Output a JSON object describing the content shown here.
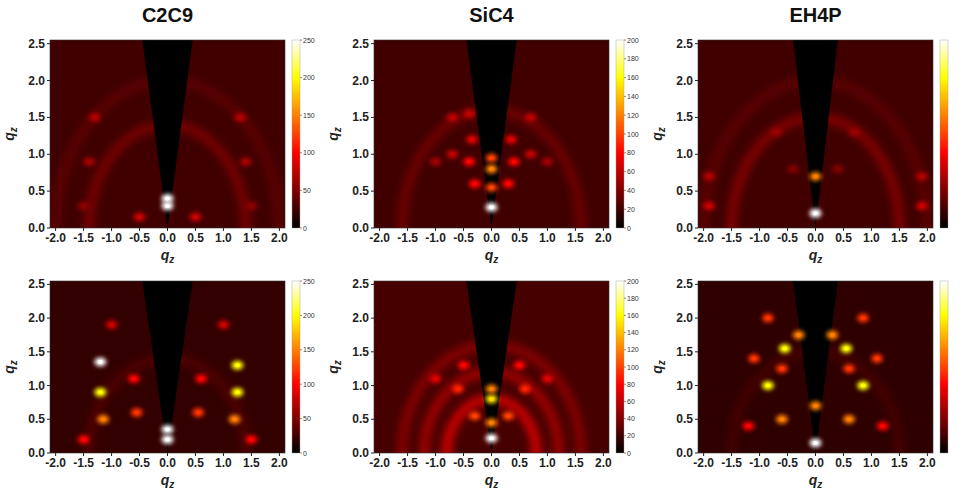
{
  "chart_data": [
    {
      "type": "heatmap",
      "title": "C2C9",
      "xlabel": "qz",
      "ylabel": "qz",
      "xlim": [
        -2.1,
        2.1
      ],
      "ylim": [
        0,
        2.55
      ],
      "xticks": [
        {
          "value": -2,
          "label": "-2.0"
        },
        {
          "value": -1.5,
          "label": "-1.5"
        },
        {
          "value": -1,
          "label": "-1.0"
        },
        {
          "value": -0.5,
          "label": "-0.5"
        },
        {
          "value": 0,
          "label": "0.0"
        },
        {
          "value": 0.5,
          "label": "0.5"
        },
        {
          "value": 1,
          "label": "1.0"
        },
        {
          "value": 1.5,
          "label": "1.5"
        },
        {
          "value": 2,
          "label": "2.0"
        }
      ],
      "yticks": [
        {
          "value": 0,
          "label": "0.0"
        },
        {
          "value": 0.5,
          "label": "0.5"
        },
        {
          "value": 1,
          "label": "1.0"
        },
        {
          "value": 1.5,
          "label": "1.5"
        },
        {
          "value": 2,
          "label": "2.0"
        },
        {
          "value": 2.5,
          "label": "2.5"
        }
      ],
      "background": 25,
      "masked_wedge": 0.45,
      "rings": [
        {
          "q": 1.4,
          "value": 55
        },
        {
          "q": 2.0,
          "value": 40
        }
      ],
      "spots": [
        {
          "x": 0,
          "y": 0.3,
          "value": 250
        },
        {
          "x": 0,
          "y": 0.4,
          "value": 250
        },
        {
          "x": -0.5,
          "y": 0.15,
          "value": 80
        },
        {
          "x": 0.5,
          "y": 0.15,
          "value": 80
        },
        {
          "x": -1.3,
          "y": 1.5,
          "value": 70
        },
        {
          "x": 1.3,
          "y": 1.5,
          "value": 70
        },
        {
          "x": -1.4,
          "y": 0.9,
          "value": 65
        },
        {
          "x": 1.4,
          "y": 0.9,
          "value": 65
        },
        {
          "x": -1.5,
          "y": 0.3,
          "value": 55
        },
        {
          "x": 1.5,
          "y": 0.3,
          "value": 55
        }
      ],
      "colorbar": {
        "range": [
          0,
          250
        ],
        "ticks": [
          0,
          50,
          100,
          150,
          200,
          250
        ]
      }
    },
    {
      "type": "heatmap",
      "title": "SiC4",
      "xlabel": "qz",
      "ylabel": "qz",
      "xlim": [
        -2.1,
        2.1
      ],
      "ylim": [
        0,
        2.55
      ],
      "xticks": [
        {
          "value": -2,
          "label": "-2.0"
        },
        {
          "value": -1.5,
          "label": "-1.5"
        },
        {
          "value": -1,
          "label": "-1.0"
        },
        {
          "value": -0.5,
          "label": "-0.5"
        },
        {
          "value": 0,
          "label": "0.0"
        },
        {
          "value": 0.5,
          "label": "0.5"
        },
        {
          "value": 1,
          "label": "1.0"
        },
        {
          "value": 1.5,
          "label": "1.5"
        },
        {
          "value": 2,
          "label": "2.0"
        }
      ],
      "yticks": [
        {
          "value": 0,
          "label": "0.0"
        },
        {
          "value": 0.5,
          "label": "0.5"
        },
        {
          "value": 1,
          "label": "1.0"
        },
        {
          "value": 1.5,
          "label": "1.5"
        },
        {
          "value": 2,
          "label": "2.0"
        },
        {
          "value": 2.5,
          "label": "2.5"
        }
      ],
      "background": 20,
      "masked_wedge": 0.45,
      "rings": [
        {
          "q": 1.6,
          "value": 40
        }
      ],
      "spots": [
        {
          "x": 0,
          "y": 0.28,
          "value": 200
        },
        {
          "x": 0,
          "y": 0.55,
          "value": 100
        },
        {
          "x": 0,
          "y": 0.8,
          "value": 120
        },
        {
          "x": 0,
          "y": 0.95,
          "value": 100
        },
        {
          "x": -0.3,
          "y": 0.6,
          "value": 80
        },
        {
          "x": 0.3,
          "y": 0.6,
          "value": 80
        },
        {
          "x": -0.4,
          "y": 0.9,
          "value": 80
        },
        {
          "x": 0.4,
          "y": 0.9,
          "value": 80
        },
        {
          "x": -0.35,
          "y": 1.2,
          "value": 70
        },
        {
          "x": 0.35,
          "y": 1.2,
          "value": 70
        },
        {
          "x": -0.7,
          "y": 1.0,
          "value": 60
        },
        {
          "x": 0.7,
          "y": 1.0,
          "value": 60
        },
        {
          "x": -0.7,
          "y": 1.5,
          "value": 60
        },
        {
          "x": 0.7,
          "y": 1.5,
          "value": 60
        },
        {
          "x": -1.0,
          "y": 0.9,
          "value": 50
        },
        {
          "x": 1.0,
          "y": 0.9,
          "value": 50
        },
        {
          "x": -0.4,
          "y": 1.55,
          "value": 60
        }
      ],
      "colorbar": {
        "range": [
          0,
          200
        ],
        "ticks": [
          0,
          20,
          40,
          60,
          80,
          100,
          120,
          140,
          160,
          180,
          200
        ]
      }
    },
    {
      "type": "heatmap",
      "title": "EH4P",
      "xlabel": "qz",
      "ylabel": "qz",
      "xlim": [
        -2.1,
        2.1
      ],
      "ylim": [
        0,
        2.55
      ],
      "xticks": [
        {
          "value": -2,
          "label": "-2.0"
        },
        {
          "value": -1.5,
          "label": "-1.5"
        },
        {
          "value": -1,
          "label": "-1.0"
        },
        {
          "value": -0.5,
          "label": "-0.5"
        },
        {
          "value": 0,
          "label": "0.0"
        },
        {
          "value": 0.5,
          "label": "0.5"
        },
        {
          "value": 1,
          "label": "1.0"
        },
        {
          "value": 1.5,
          "label": "1.5"
        },
        {
          "value": 2,
          "label": "2.0"
        }
      ],
      "yticks": [
        {
          "value": 0,
          "label": "0.0"
        },
        {
          "value": 0.5,
          "label": "0.5"
        },
        {
          "value": 1,
          "label": "1.0"
        },
        {
          "value": 1.5,
          "label": "1.5"
        },
        {
          "value": 2,
          "label": "2.0"
        },
        {
          "value": 2.5,
          "label": "2.5"
        }
      ],
      "background": 25,
      "masked_wedge": 0.4,
      "rings": [
        {
          "q": 1.5,
          "value": 60
        },
        {
          "q": 2.0,
          "value": 40
        }
      ],
      "spots": [
        {
          "x": 0,
          "y": 0.2,
          "value": 250
        },
        {
          "x": 0,
          "y": 0.7,
          "value": 150
        },
        {
          "x": -1.9,
          "y": 0.3,
          "value": 80
        },
        {
          "x": 1.9,
          "y": 0.3,
          "value": 80
        },
        {
          "x": -1.9,
          "y": 0.7,
          "value": 70
        },
        {
          "x": 1.9,
          "y": 0.7,
          "value": 70
        },
        {
          "x": -0.7,
          "y": 1.3,
          "value": 60
        },
        {
          "x": 0.7,
          "y": 1.3,
          "value": 60
        },
        {
          "x": -0.4,
          "y": 0.8,
          "value": 50
        },
        {
          "x": 0.4,
          "y": 0.8,
          "value": 50
        }
      ],
      "colorbar": {
        "range": [
          0,
          250
        ]
      }
    },
    {
      "type": "heatmap",
      "xlabel": "qz",
      "ylabel": "qz",
      "xlim": [
        -2.1,
        2.1
      ],
      "ylim": [
        0,
        2.55
      ],
      "xticks": [
        {
          "value": -2,
          "label": "-2.0"
        },
        {
          "value": -1.5,
          "label": "-1.5"
        },
        {
          "value": -1,
          "label": "-1.0"
        },
        {
          "value": -0.5,
          "label": "-0.5"
        },
        {
          "value": 0,
          "label": "0.0"
        },
        {
          "value": 0.5,
          "label": "0.5"
        },
        {
          "value": 1,
          "label": "1.0"
        },
        {
          "value": 1.5,
          "label": "1.5"
        },
        {
          "value": 2,
          "label": "2.0"
        }
      ],
      "yticks": [
        {
          "value": 0,
          "label": "0.0"
        },
        {
          "value": 0.5,
          "label": "0.5"
        },
        {
          "value": 1,
          "label": "1.0"
        },
        {
          "value": 1.5,
          "label": "1.5"
        },
        {
          "value": 2,
          "label": "2.0"
        },
        {
          "value": 2.5,
          "label": "2.5"
        }
      ],
      "background": 20,
      "masked_wedge": 0.45,
      "rings": [
        {
          "q": 1.4,
          "value": 35
        }
      ],
      "spots": [
        {
          "x": 0,
          "y": 0.2,
          "value": 250
        },
        {
          "x": 0,
          "y": 0.35,
          "value": 250
        },
        {
          "x": -1.2,
          "y": 1.35,
          "value": 250
        },
        {
          "x": 1.25,
          "y": 1.3,
          "value": 200
        },
        {
          "x": -1.2,
          "y": 0.9,
          "value": 200
        },
        {
          "x": 1.25,
          "y": 0.9,
          "value": 200
        },
        {
          "x": -1.15,
          "y": 0.5,
          "value": 150
        },
        {
          "x": 1.2,
          "y": 0.5,
          "value": 150
        },
        {
          "x": -0.55,
          "y": 0.6,
          "value": 120
        },
        {
          "x": 0.55,
          "y": 0.6,
          "value": 120
        },
        {
          "x": -0.6,
          "y": 1.1,
          "value": 100
        },
        {
          "x": 0.6,
          "y": 1.1,
          "value": 100
        },
        {
          "x": -1.0,
          "y": 1.9,
          "value": 80
        },
        {
          "x": 1.0,
          "y": 1.9,
          "value": 80
        },
        {
          "x": -1.5,
          "y": 0.2,
          "value": 100
        },
        {
          "x": 1.5,
          "y": 0.2,
          "value": 100
        }
      ],
      "colorbar": {
        "range": [
          0,
          250
        ],
        "ticks": [
          0,
          50,
          100,
          150,
          200,
          250
        ]
      }
    },
    {
      "type": "heatmap",
      "xlabel": "qz",
      "ylabel": "qz",
      "xlim": [
        -2.1,
        2.1
      ],
      "ylim": [
        0,
        2.55
      ],
      "xticks": [
        {
          "value": -2,
          "label": "-2.0"
        },
        {
          "value": -1.5,
          "label": "-1.5"
        },
        {
          "value": -1,
          "label": "-1.0"
        },
        {
          "value": -0.5,
          "label": "-0.5"
        },
        {
          "value": 0,
          "label": "0.0"
        },
        {
          "value": 0.5,
          "label": "0.5"
        },
        {
          "value": 1,
          "label": "1.0"
        },
        {
          "value": 1.5,
          "label": "1.5"
        },
        {
          "value": 2,
          "label": "2.0"
        }
      ],
      "yticks": [
        {
          "value": 0,
          "label": "0.0"
        },
        {
          "value": 0.5,
          "label": "0.5"
        },
        {
          "value": 1,
          "label": "1.0"
        },
        {
          "value": 1.5,
          "label": "1.5"
        },
        {
          "value": 2,
          "label": "2.0"
        },
        {
          "value": 2.5,
          "label": "2.5"
        }
      ],
      "background": 22,
      "masked_wedge": 0.45,
      "rings": [
        {
          "q": 0.8,
          "value": 80
        },
        {
          "q": 1.2,
          "value": 60
        },
        {
          "q": 1.6,
          "value": 50
        }
      ],
      "spots": [
        {
          "x": 0,
          "y": 0.22,
          "value": 200
        },
        {
          "x": 0,
          "y": 0.45,
          "value": 120
        },
        {
          "x": 0,
          "y": 0.8,
          "value": 150
        },
        {
          "x": 0,
          "y": 0.95,
          "value": 120
        },
        {
          "x": -0.3,
          "y": 0.55,
          "value": 100
        },
        {
          "x": 0.3,
          "y": 0.55,
          "value": 100
        },
        {
          "x": -0.6,
          "y": 0.95,
          "value": 90
        },
        {
          "x": 0.6,
          "y": 0.95,
          "value": 90
        },
        {
          "x": -0.5,
          "y": 1.3,
          "value": 80
        },
        {
          "x": 0.5,
          "y": 1.3,
          "value": 80
        },
        {
          "x": -1.0,
          "y": 1.1,
          "value": 70
        },
        {
          "x": 1.0,
          "y": 1.1,
          "value": 70
        }
      ],
      "colorbar": {
        "range": [
          0,
          200
        ],
        "ticks": [
          0,
          20,
          40,
          60,
          80,
          100,
          120,
          140,
          160,
          180,
          200
        ]
      }
    },
    {
      "type": "heatmap",
      "xlabel": "qz",
      "ylabel": "qz",
      "xlim": [
        -2.1,
        2.1
      ],
      "ylim": [
        0,
        2.55
      ],
      "xticks": [
        {
          "value": -2,
          "label": "-2.0"
        },
        {
          "value": -1.5,
          "label": "-1.5"
        },
        {
          "value": -1,
          "label": "-1.0"
        },
        {
          "value": -0.5,
          "label": "-0.5"
        },
        {
          "value": 0,
          "label": "0.0"
        },
        {
          "value": 0.5,
          "label": "0.5"
        },
        {
          "value": 1,
          "label": "1.0"
        },
        {
          "value": 1.5,
          "label": "1.5"
        },
        {
          "value": 2,
          "label": "2.0"
        }
      ],
      "yticks": [
        {
          "value": 0,
          "label": "0.0"
        },
        {
          "value": 0.5,
          "label": "0.5"
        },
        {
          "value": 1,
          "label": "1.0"
        },
        {
          "value": 1.5,
          "label": "1.5"
        },
        {
          "value": 2,
          "label": "2.0"
        },
        {
          "value": 2.5,
          "label": "2.5"
        }
      ],
      "background": 18,
      "masked_wedge": 0.4,
      "rings": [
        {
          "q": 1.5,
          "value": 30
        }
      ],
      "spots": [
        {
          "x": 0,
          "y": 0.15,
          "value": 250
        },
        {
          "x": 0,
          "y": 0.7,
          "value": 150
        },
        {
          "x": -0.6,
          "y": 0.5,
          "value": 150
        },
        {
          "x": 0.6,
          "y": 0.5,
          "value": 150
        },
        {
          "x": -0.85,
          "y": 1.0,
          "value": 200
        },
        {
          "x": 0.85,
          "y": 1.0,
          "value": 200
        },
        {
          "x": -0.55,
          "y": 1.55,
          "value": 200
        },
        {
          "x": 0.55,
          "y": 1.55,
          "value": 200
        },
        {
          "x": -1.2,
          "y": 0.4,
          "value": 100
        },
        {
          "x": 1.2,
          "y": 0.4,
          "value": 100
        },
        {
          "x": -0.3,
          "y": 1.75,
          "value": 150
        },
        {
          "x": 0.3,
          "y": 1.75,
          "value": 150
        },
        {
          "x": -0.85,
          "y": 2.0,
          "value": 120
        },
        {
          "x": 0.85,
          "y": 2.0,
          "value": 120
        },
        {
          "x": -1.1,
          "y": 1.4,
          "value": 120
        },
        {
          "x": 1.1,
          "y": 1.4,
          "value": 120
        },
        {
          "x": -0.6,
          "y": 1.25,
          "value": 120
        },
        {
          "x": 0.6,
          "y": 1.25,
          "value": 120
        }
      ],
      "colorbar": {
        "range": [
          0,
          250
        ]
      }
    }
  ]
}
